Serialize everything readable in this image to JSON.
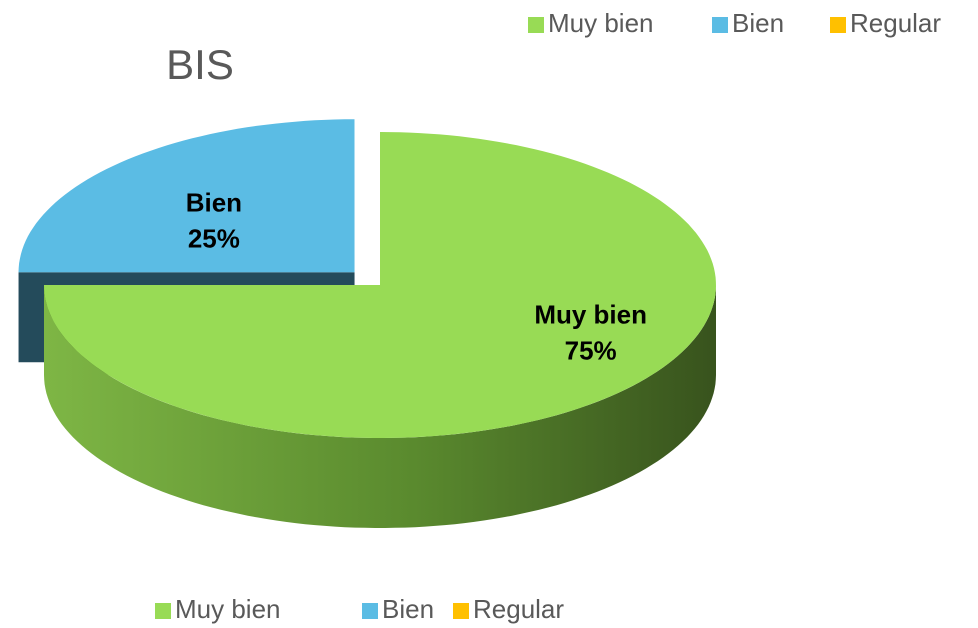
{
  "chart_data": {
    "type": "pie",
    "title": "BIS",
    "categories": [
      "Muy bien",
      "Bien",
      "Regular"
    ],
    "values": [
      75,
      25,
      0
    ],
    "value_labels": [
      "75%",
      "25%",
      null
    ],
    "colors": [
      "#98db55",
      "#5bbce4",
      "#ffc000"
    ],
    "exploded": [
      false,
      true,
      false
    ],
    "legend": [
      "top-right",
      "bottom"
    ]
  }
}
